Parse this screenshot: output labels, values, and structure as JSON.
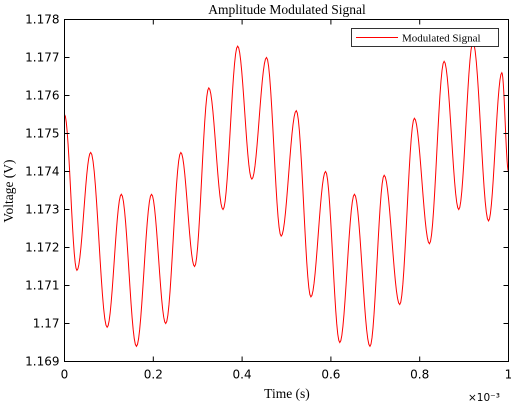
{
  "chart_data": {
    "type": "line",
    "title": "Amplitude Modulated Signal",
    "xlabel": "Time (s)",
    "ylabel": "Voltage (V)",
    "x_exponent_label": "×10⁻³",
    "xlim": [
      0,
      0.001
    ],
    "ylim": [
      1.169,
      1.178
    ],
    "x_ticks": [
      0,
      0.0002,
      0.0004,
      0.0006,
      0.0008,
      0.001
    ],
    "x_tick_labels": [
      "0",
      "0.2",
      "0.4",
      "0.6",
      "0.8",
      "1"
    ],
    "y_ticks": [
      1.169,
      1.17,
      1.171,
      1.172,
      1.173,
      1.174,
      1.175,
      1.176,
      1.177,
      1.178
    ],
    "y_tick_labels": [
      "1.169",
      "1.17",
      "1.171",
      "1.172",
      "1.173",
      "1.174",
      "1.175",
      "1.176",
      "1.177",
      "1.178"
    ],
    "grid": false,
    "legend_position": "top-right",
    "series": [
      {
        "name": "Modulated Signal",
        "color": "#ff0000",
        "extrema": [
          {
            "x": 0.0,
            "y": 1.1755
          },
          {
            "x": 2.8e-05,
            "y": 1.1714
          },
          {
            "x": 5.9e-05,
            "y": 1.1745
          },
          {
            "x": 9.6e-05,
            "y": 1.1699
          },
          {
            "x": 0.000128,
            "y": 1.1734
          },
          {
            "x": 0.000162,
            "y": 1.1694
          },
          {
            "x": 0.000196,
            "y": 1.1734
          },
          {
            "x": 0.000228,
            "y": 1.17
          },
          {
            "x": 0.000262,
            "y": 1.1745
          },
          {
            "x": 0.000293,
            "y": 1.1715
          },
          {
            "x": 0.000325,
            "y": 1.1762
          },
          {
            "x": 0.000357,
            "y": 1.173
          },
          {
            "x": 0.00039,
            "y": 1.1773
          },
          {
            "x": 0.000422,
            "y": 1.1738
          },
          {
            "x": 0.000455,
            "y": 1.177
          },
          {
            "x": 0.000488,
            "y": 1.1723
          },
          {
            "x": 0.000522,
            "y": 1.1756
          },
          {
            "x": 0.000555,
            "y": 1.1707
          },
          {
            "x": 0.000588,
            "y": 1.174
          },
          {
            "x": 0.00062,
            "y": 1.1695
          },
          {
            "x": 0.000653,
            "y": 1.1734
          },
          {
            "x": 0.000688,
            "y": 1.1694
          },
          {
            "x": 0.00072,
            "y": 1.1739
          },
          {
            "x": 0.000755,
            "y": 1.1705
          },
          {
            "x": 0.000788,
            "y": 1.1754
          },
          {
            "x": 0.000822,
            "y": 1.1721
          },
          {
            "x": 0.000855,
            "y": 1.1769
          },
          {
            "x": 0.000888,
            "y": 1.173
          },
          {
            "x": 0.00092,
            "y": 1.1774
          },
          {
            "x": 0.000955,
            "y": 1.1727
          },
          {
            "x": 0.000985,
            "y": 1.1766
          },
          {
            "x": 0.001,
            "y": 1.174
          }
        ]
      }
    ]
  }
}
